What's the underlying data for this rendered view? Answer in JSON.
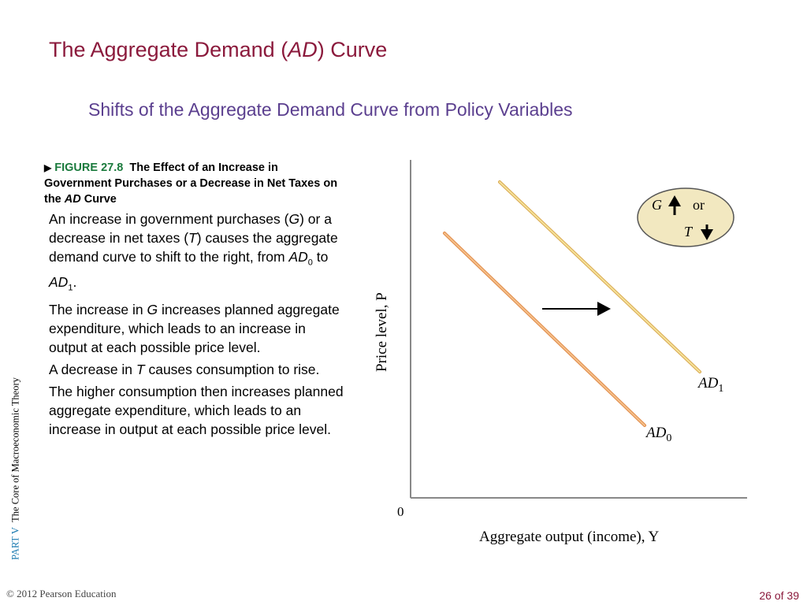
{
  "slide": {
    "title_before": "The Aggregate Demand (",
    "title_italic": "AD",
    "title_after": ") Curve",
    "subtitle": "Shifts of the Aggregate Demand Curve from Policy Variables"
  },
  "figure": {
    "number": "FIGURE 27.8",
    "caption_1": "The Effect of an Increase in Government Purchases or a Decrease in Net Taxes on the ",
    "caption_italic": "AD",
    "caption_2": " Curve"
  },
  "body": {
    "p1_a": "An increase in government purchases (",
    "p1_G": "G",
    "p1_b": ") or a decrease in net taxes (",
    "p1_T": "T",
    "p1_c": ") causes the aggregate demand curve to shift to the right, from ",
    "p1_ad": "AD",
    "p1_sub0": "0",
    "p1_to": " to ",
    "p1_ad1": "AD",
    "p1_sub1": "1",
    "p1_end": ".",
    "p2_a": "The increase in ",
    "p2_G": "G",
    "p2_b": " increases planned aggregate expenditure, which leads to an increase in output at each possible price level.",
    "p3_a": "A decrease in ",
    "p3_T": "T",
    "p3_b": " causes consumption to rise.",
    "p4": "The higher consumption then increases planned aggregate expenditure, which leads to an increase in output at each possible price level."
  },
  "side": {
    "part": "PART  V",
    "text": "The Core of Macroeconomic Theory"
  },
  "footer": {
    "copyright": "© 2012 Pearson Education",
    "page": "26 of 39"
  },
  "chart": {
    "ylabel": "Price level, P",
    "xlabel": "Aggregate output (income), Y",
    "origin": "0",
    "legend_G": "G",
    "legend_or": "or",
    "legend_T": "T",
    "ad0_main": "AD",
    "ad0_sub": "0",
    "ad1_main": "AD",
    "ad1_sub": "1"
  },
  "colors": {
    "title": "#8b1a3c",
    "subtitle": "#5b3f8f",
    "figure_number": "#1a7a3c",
    "ad0_curve": "#e8a060",
    "ad1_curve": "#e8cc70",
    "legend_fill": "#f2e8c0",
    "axis": "#888888"
  }
}
